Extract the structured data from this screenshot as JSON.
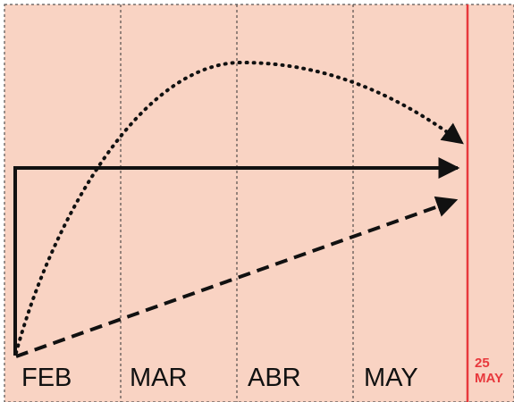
{
  "months": [
    "FEB",
    "MAR",
    "ABR",
    "MAY"
  ],
  "deadline": {
    "day": "25",
    "month": "MAY"
  },
  "colors": {
    "background": "#f9d3c3",
    "grid": "#333333",
    "arrow": "#111111",
    "deadline": "#e8383c"
  }
}
